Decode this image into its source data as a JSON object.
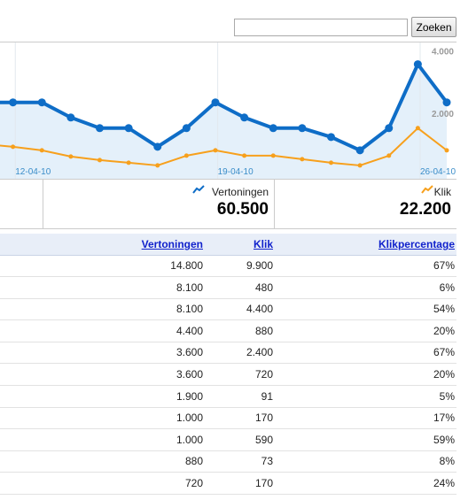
{
  "search": {
    "button": "Zoeken"
  },
  "chart_data": {
    "type": "line",
    "categories": [
      null,
      null,
      "12-04-10",
      null,
      null,
      null,
      null,
      null,
      null,
      "19-04-10",
      null,
      null,
      null,
      null,
      null,
      null,
      "26-04-10"
    ],
    "series": [
      {
        "name": "Vertoningen",
        "color": "#0e6dc7",
        "values": [
          2629,
          2629,
          2629,
          2143,
          1800,
          1800,
          1200,
          1800,
          2629,
          2143,
          1800,
          1800,
          1514,
          1086,
          1800,
          3857,
          2629
        ]
      },
      {
        "name": "Klik",
        "color": "#f7a01c",
        "values": [
          1286,
          1200,
          1086,
          886,
          771,
          686,
          600,
          914,
          1086,
          914,
          914,
          800,
          686,
          600,
          914,
          1800,
          1086
        ]
      }
    ],
    "ylim": [
      0,
      4500
    ],
    "yticks": [
      {
        "value": 2000,
        "label": "2.000"
      },
      {
        "value": 4000,
        "label": "4.000"
      }
    ]
  },
  "totals": [
    "60.500",
    "22.200"
  ],
  "table": {
    "columns": [
      "Vertoningen",
      "Klik",
      "Klikpercentage"
    ],
    "rows": [
      [
        "14.800",
        "9.900",
        "67%"
      ],
      [
        "8.100",
        "480",
        "6%"
      ],
      [
        "8.100",
        "4.400",
        "54%"
      ],
      [
        "4.400",
        "880",
        "20%"
      ],
      [
        "3.600",
        "2.400",
        "67%"
      ],
      [
        "3.600",
        "720",
        "20%"
      ],
      [
        "1.900",
        "91",
        "5%"
      ],
      [
        "1.000",
        "170",
        "17%"
      ],
      [
        "1.000",
        "590",
        "59%"
      ],
      [
        "880",
        "73",
        "8%"
      ],
      [
        "720",
        "170",
        "24%"
      ]
    ]
  }
}
